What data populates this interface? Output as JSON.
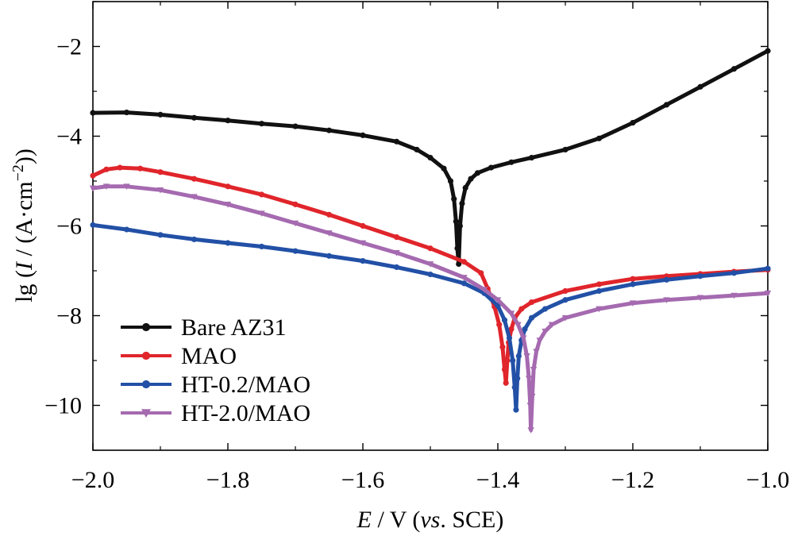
{
  "chart_data": {
    "type": "line",
    "title": "",
    "xlabel": {
      "italic": "E",
      "rest": " / V (",
      "italic2": "vs",
      "rest2": ". SCE)"
    },
    "ylabel": {
      "pre": "lg (",
      "italic": "I",
      "mid": " / (A·cm",
      "sup": "−2",
      "post": "))"
    },
    "xlim": [
      -2.0,
      -1.0
    ],
    "ylim": [
      -11,
      -1
    ],
    "xticks": [
      -2.0,
      -1.8,
      -1.6,
      -1.4,
      -1.2,
      -1.0
    ],
    "xtick_labels": [
      "−2.0",
      "−1.8",
      "−1.6",
      "−1.4",
      "−1.2",
      "−1.0"
    ],
    "yticks": [
      -10,
      -8,
      -6,
      -4,
      -2
    ],
    "ytick_labels": [
      "−10",
      "−8",
      "−6",
      "−4",
      "−2"
    ],
    "legend_position": "bottom-left",
    "grid": false,
    "series": [
      {
        "name": "Bare AZ31",
        "color": "#111111",
        "marker": "circle",
        "points": [
          [
            -2.0,
            -3.48
          ],
          [
            -1.95,
            -3.47
          ],
          [
            -1.9,
            -3.52
          ],
          [
            -1.85,
            -3.59
          ],
          [
            -1.8,
            -3.65
          ],
          [
            -1.75,
            -3.72
          ],
          [
            -1.7,
            -3.78
          ],
          [
            -1.65,
            -3.87
          ],
          [
            -1.6,
            -3.98
          ],
          [
            -1.55,
            -4.12
          ],
          [
            -1.52,
            -4.3
          ],
          [
            -1.5,
            -4.48
          ],
          [
            -1.48,
            -4.72
          ],
          [
            -1.47,
            -5.0
          ],
          [
            -1.465,
            -5.4
          ],
          [
            -1.462,
            -5.9
          ],
          [
            -1.46,
            -6.5
          ],
          [
            -1.458,
            -6.85
          ],
          [
            -1.456,
            -6.0
          ],
          [
            -1.453,
            -5.5
          ],
          [
            -1.448,
            -5.15
          ],
          [
            -1.44,
            -4.95
          ],
          [
            -1.43,
            -4.82
          ],
          [
            -1.41,
            -4.7
          ],
          [
            -1.38,
            -4.58
          ],
          [
            -1.35,
            -4.48
          ],
          [
            -1.3,
            -4.3
          ],
          [
            -1.25,
            -4.05
          ],
          [
            -1.2,
            -3.7
          ],
          [
            -1.15,
            -3.3
          ],
          [
            -1.1,
            -2.9
          ],
          [
            -1.05,
            -2.5
          ],
          [
            -1.0,
            -2.1
          ]
        ]
      },
      {
        "name": "MAO",
        "color": "#e0252b",
        "marker": "circle",
        "points": [
          [
            -2.0,
            -4.88
          ],
          [
            -1.98,
            -4.74
          ],
          [
            -1.96,
            -4.7
          ],
          [
            -1.93,
            -4.72
          ],
          [
            -1.9,
            -4.8
          ],
          [
            -1.85,
            -4.95
          ],
          [
            -1.8,
            -5.12
          ],
          [
            -1.75,
            -5.3
          ],
          [
            -1.7,
            -5.52
          ],
          [
            -1.65,
            -5.75
          ],
          [
            -1.6,
            -6.0
          ],
          [
            -1.55,
            -6.25
          ],
          [
            -1.5,
            -6.5
          ],
          [
            -1.45,
            -6.8
          ],
          [
            -1.425,
            -7.05
          ],
          [
            -1.415,
            -7.4
          ],
          [
            -1.405,
            -7.8
          ],
          [
            -1.398,
            -8.2
          ],
          [
            -1.393,
            -8.7
          ],
          [
            -1.39,
            -9.2
          ],
          [
            -1.388,
            -9.5
          ],
          [
            -1.386,
            -9.0
          ],
          [
            -1.384,
            -8.6
          ],
          [
            -1.38,
            -8.3
          ],
          [
            -1.375,
            -8.05
          ],
          [
            -1.365,
            -7.85
          ],
          [
            -1.35,
            -7.7
          ],
          [
            -1.3,
            -7.45
          ],
          [
            -1.25,
            -7.3
          ],
          [
            -1.2,
            -7.18
          ],
          [
            -1.15,
            -7.12
          ],
          [
            -1.1,
            -7.07
          ],
          [
            -1.05,
            -7.02
          ],
          [
            -1.0,
            -6.98
          ]
        ]
      },
      {
        "name": "HT-0.2/MAO",
        "color": "#2250a6",
        "marker": "circle",
        "points": [
          [
            -2.0,
            -5.98
          ],
          [
            -1.95,
            -6.08
          ],
          [
            -1.9,
            -6.2
          ],
          [
            -1.85,
            -6.3
          ],
          [
            -1.8,
            -6.38
          ],
          [
            -1.75,
            -6.46
          ],
          [
            -1.7,
            -6.56
          ],
          [
            -1.65,
            -6.67
          ],
          [
            -1.6,
            -6.78
          ],
          [
            -1.55,
            -6.92
          ],
          [
            -1.5,
            -7.08
          ],
          [
            -1.45,
            -7.28
          ],
          [
            -1.42,
            -7.5
          ],
          [
            -1.4,
            -7.78
          ],
          [
            -1.39,
            -8.1
          ],
          [
            -1.383,
            -8.5
          ],
          [
            -1.378,
            -9.0
          ],
          [
            -1.375,
            -9.6
          ],
          [
            -1.373,
            -10.1
          ],
          [
            -1.371,
            -9.4
          ],
          [
            -1.369,
            -8.9
          ],
          [
            -1.365,
            -8.55
          ],
          [
            -1.36,
            -8.3
          ],
          [
            -1.35,
            -8.05
          ],
          [
            -1.33,
            -7.85
          ],
          [
            -1.3,
            -7.65
          ],
          [
            -1.25,
            -7.45
          ],
          [
            -1.2,
            -7.3
          ],
          [
            -1.15,
            -7.2
          ],
          [
            -1.1,
            -7.12
          ],
          [
            -1.05,
            -7.05
          ],
          [
            -1.0,
            -6.95
          ]
        ]
      },
      {
        "name": "HT-2.0/MAO",
        "color": "#a56ab0",
        "marker": "triangle-down",
        "points": [
          [
            -2.0,
            -5.16
          ],
          [
            -1.98,
            -5.12
          ],
          [
            -1.95,
            -5.12
          ],
          [
            -1.9,
            -5.2
          ],
          [
            -1.85,
            -5.35
          ],
          [
            -1.8,
            -5.52
          ],
          [
            -1.75,
            -5.72
          ],
          [
            -1.7,
            -5.94
          ],
          [
            -1.65,
            -6.16
          ],
          [
            -1.6,
            -6.38
          ],
          [
            -1.55,
            -6.6
          ],
          [
            -1.5,
            -6.85
          ],
          [
            -1.45,
            -7.15
          ],
          [
            -1.42,
            -7.42
          ],
          [
            -1.4,
            -7.65
          ],
          [
            -1.38,
            -7.95
          ],
          [
            -1.37,
            -8.2
          ],
          [
            -1.362,
            -8.5
          ],
          [
            -1.357,
            -8.9
          ],
          [
            -1.354,
            -9.4
          ],
          [
            -1.352,
            -10.0
          ],
          [
            -1.351,
            -10.55
          ],
          [
            -1.349,
            -9.8
          ],
          [
            -1.347,
            -9.2
          ],
          [
            -1.343,
            -8.8
          ],
          [
            -1.338,
            -8.55
          ],
          [
            -1.33,
            -8.35
          ],
          [
            -1.32,
            -8.2
          ],
          [
            -1.3,
            -8.05
          ],
          [
            -1.25,
            -7.85
          ],
          [
            -1.2,
            -7.72
          ],
          [
            -1.15,
            -7.65
          ],
          [
            -1.1,
            -7.6
          ],
          [
            -1.05,
            -7.55
          ],
          [
            -1.0,
            -7.5
          ]
        ]
      }
    ]
  }
}
